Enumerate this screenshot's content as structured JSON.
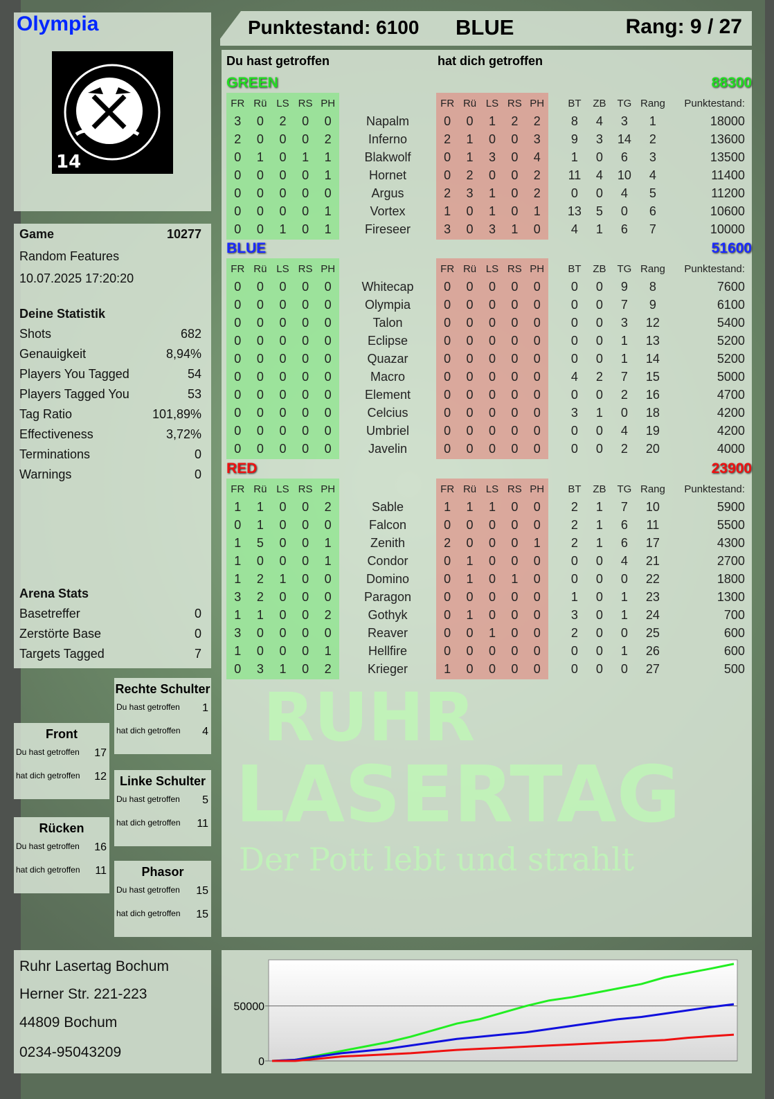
{
  "player": {
    "name": "Olympia",
    "score_label": "Punktestand: 6100",
    "team": "BLUE",
    "rank_label": "Rang: 9 / 27"
  },
  "logo": {
    "text": "RUHR LASERTAG",
    "badge": "14"
  },
  "columns": {
    "hit": "Du hast getroffen",
    "got_hit": "hat dich getroffen",
    "zones": [
      "FR",
      "Rü",
      "LS",
      "RS",
      "PH"
    ],
    "extra": [
      "BT",
      "ZB",
      "TG",
      "Rang",
      "Punktestand:"
    ]
  },
  "colors": {
    "green": "#22dd22",
    "blue": "#1a2aff",
    "red": "#ee1111",
    "hit_bg": "#8ee68e",
    "got_hit_bg": "#e18c82"
  },
  "teams": [
    {
      "name": "GREEN",
      "score": "88300",
      "color": "#22dd22",
      "players": [
        [
          "Napalm",
          [
            3,
            0,
            2,
            0,
            0
          ],
          [
            0,
            0,
            1,
            2,
            2
          ],
          8,
          4,
          3,
          1,
          18000
        ],
        [
          "Inferno",
          [
            2,
            0,
            0,
            0,
            2
          ],
          [
            2,
            1,
            0,
            0,
            3
          ],
          9,
          3,
          14,
          2,
          13600
        ],
        [
          "Blakwolf",
          [
            0,
            1,
            0,
            1,
            1
          ],
          [
            0,
            1,
            3,
            0,
            4
          ],
          1,
          0,
          6,
          3,
          13500
        ],
        [
          "Hornet",
          [
            0,
            0,
            0,
            0,
            1
          ],
          [
            0,
            2,
            0,
            0,
            2
          ],
          11,
          4,
          10,
          4,
          11400
        ],
        [
          "Argus",
          [
            0,
            0,
            0,
            0,
            0
          ],
          [
            2,
            3,
            1,
            0,
            2
          ],
          0,
          0,
          4,
          5,
          11200
        ],
        [
          "Vortex",
          [
            0,
            0,
            0,
            0,
            1
          ],
          [
            1,
            0,
            1,
            0,
            1
          ],
          13,
          5,
          0,
          6,
          10600
        ],
        [
          "Fireseer",
          [
            0,
            0,
            1,
            0,
            1
          ],
          [
            3,
            0,
            3,
            1,
            0
          ],
          4,
          1,
          6,
          7,
          10000
        ]
      ]
    },
    {
      "name": "BLUE",
      "score": "51600",
      "color": "#1a2aff",
      "players": [
        [
          "Whitecap",
          [
            0,
            0,
            0,
            0,
            0
          ],
          [
            0,
            0,
            0,
            0,
            0
          ],
          0,
          0,
          9,
          8,
          7600
        ],
        [
          "Olympia",
          [
            0,
            0,
            0,
            0,
            0
          ],
          [
            0,
            0,
            0,
            0,
            0
          ],
          0,
          0,
          7,
          9,
          6100
        ],
        [
          "Talon",
          [
            0,
            0,
            0,
            0,
            0
          ],
          [
            0,
            0,
            0,
            0,
            0
          ],
          0,
          0,
          3,
          12,
          5400
        ],
        [
          "Eclipse",
          [
            0,
            0,
            0,
            0,
            0
          ],
          [
            0,
            0,
            0,
            0,
            0
          ],
          0,
          0,
          1,
          13,
          5200
        ],
        [
          "Quazar",
          [
            0,
            0,
            0,
            0,
            0
          ],
          [
            0,
            0,
            0,
            0,
            0
          ],
          0,
          0,
          1,
          14,
          5200
        ],
        [
          "Macro",
          [
            0,
            0,
            0,
            0,
            0
          ],
          [
            0,
            0,
            0,
            0,
            0
          ],
          4,
          2,
          7,
          15,
          5000
        ],
        [
          "Element",
          [
            0,
            0,
            0,
            0,
            0
          ],
          [
            0,
            0,
            0,
            0,
            0
          ],
          0,
          0,
          2,
          16,
          4700
        ],
        [
          "Celcius",
          [
            0,
            0,
            0,
            0,
            0
          ],
          [
            0,
            0,
            0,
            0,
            0
          ],
          3,
          1,
          0,
          18,
          4200
        ],
        [
          "Umbriel",
          [
            0,
            0,
            0,
            0,
            0
          ],
          [
            0,
            0,
            0,
            0,
            0
          ],
          0,
          0,
          4,
          19,
          4200
        ],
        [
          "Javelin",
          [
            0,
            0,
            0,
            0,
            0
          ],
          [
            0,
            0,
            0,
            0,
            0
          ],
          0,
          0,
          2,
          20,
          4000
        ]
      ]
    },
    {
      "name": "RED",
      "score": "23900",
      "color": "#ee1111",
      "players": [
        [
          "Sable",
          [
            1,
            1,
            0,
            0,
            2
          ],
          [
            1,
            1,
            1,
            0,
            0
          ],
          2,
          1,
          7,
          10,
          5900
        ],
        [
          "Falcon",
          [
            0,
            1,
            0,
            0,
            0
          ],
          [
            0,
            0,
            0,
            0,
            0
          ],
          2,
          1,
          6,
          11,
          5500
        ],
        [
          "Zenith",
          [
            1,
            5,
            0,
            0,
            1
          ],
          [
            2,
            0,
            0,
            0,
            1
          ],
          2,
          1,
          6,
          17,
          4300
        ],
        [
          "Condor",
          [
            1,
            0,
            0,
            0,
            1
          ],
          [
            0,
            1,
            0,
            0,
            0
          ],
          0,
          0,
          4,
          21,
          2700
        ],
        [
          "Domino",
          [
            1,
            2,
            1,
            0,
            0
          ],
          [
            0,
            1,
            0,
            1,
            0
          ],
          0,
          0,
          0,
          22,
          1800
        ],
        [
          "Paragon",
          [
            3,
            2,
            0,
            0,
            0
          ],
          [
            0,
            0,
            0,
            0,
            0
          ],
          1,
          0,
          1,
          23,
          1300
        ],
        [
          "Gothyk",
          [
            1,
            1,
            0,
            0,
            2
          ],
          [
            0,
            1,
            0,
            0,
            0
          ],
          3,
          0,
          1,
          24,
          700
        ],
        [
          "Reaver",
          [
            3,
            0,
            0,
            0,
            0
          ],
          [
            0,
            0,
            1,
            0,
            0
          ],
          2,
          0,
          0,
          25,
          600
        ],
        [
          "Hellfire",
          [
            1,
            0,
            0,
            0,
            1
          ],
          [
            0,
            0,
            0,
            0,
            0
          ],
          0,
          0,
          1,
          26,
          600
        ],
        [
          "Krieger",
          [
            0,
            3,
            1,
            0,
            2
          ],
          [
            1,
            0,
            0,
            0,
            0
          ],
          0,
          0,
          0,
          27,
          500
        ]
      ]
    }
  ],
  "game": {
    "label": "Game",
    "number": "10277",
    "mode": "Random Features",
    "datetime": "10.07.2025 17:20:20"
  },
  "stats": {
    "title": "Deine Statistik",
    "items": [
      {
        "label": "Shots",
        "value": "682"
      },
      {
        "label": "Genauigkeit",
        "value": "8,94%"
      },
      {
        "label": "Players You Tagged",
        "value": "54"
      },
      {
        "label": "Players Tagged You",
        "value": "53"
      },
      {
        "label": "Tag Ratio",
        "value": "101,89%"
      },
      {
        "label": "Effectiveness",
        "value": "3,72%"
      },
      {
        "label": "Terminations",
        "value": "0"
      },
      {
        "label": "Warnings",
        "value": "0"
      }
    ]
  },
  "arena": {
    "title": "Arena Stats",
    "items": [
      {
        "label": "Basetreffer",
        "value": "0"
      },
      {
        "label": "Zerstörte Base",
        "value": "0"
      },
      {
        "label": "Targets Tagged",
        "value": "7"
      }
    ]
  },
  "zones": [
    {
      "title": "Rechte Schulter",
      "hit": "1",
      "got": "4"
    },
    {
      "title": "Front",
      "hit": "17",
      "got": "12"
    },
    {
      "title": "Linke Schulter",
      "hit": "5",
      "got": "11"
    },
    {
      "title": "Rücken",
      "hit": "16",
      "got": "11"
    },
    {
      "title": "Phasor",
      "hit": "15",
      "got": "15"
    }
  ],
  "address": [
    "Ruhr Lasertag Bochum",
    "Herner Str. 221-223",
    "44809 Bochum",
    "0234-95043209"
  ],
  "watermark": {
    "line1": "RUHR",
    "line2": "LASERTAG",
    "slogan": "Der Pott lebt und strahlt"
  },
  "chart_data": {
    "type": "line",
    "ylim": [
      0,
      92000
    ],
    "yticks": [
      0,
      50000
    ],
    "grid": true,
    "series": [
      {
        "color": "#22ee22",
        "values": [
          0,
          1000,
          5000,
          9000,
          13000,
          17000,
          22000,
          28000,
          34000,
          38000,
          44000,
          50000,
          55000,
          58000,
          62000,
          66000,
          70000,
          76000,
          80000,
          84000,
          88300
        ]
      },
      {
        "color": "#1010dd",
        "values": [
          0,
          1000,
          4000,
          7000,
          9000,
          11000,
          14000,
          17000,
          20000,
          22000,
          24000,
          26000,
          29000,
          32000,
          35000,
          38000,
          40000,
          43000,
          46000,
          49000,
          51600
        ]
      },
      {
        "color": "#ee1111",
        "values": [
          0,
          0,
          2000,
          4000,
          5000,
          6000,
          7000,
          8500,
          10000,
          11000,
          12000,
          13000,
          14000,
          15000,
          16000,
          17000,
          18000,
          19000,
          21000,
          22500,
          23900
        ]
      }
    ]
  }
}
